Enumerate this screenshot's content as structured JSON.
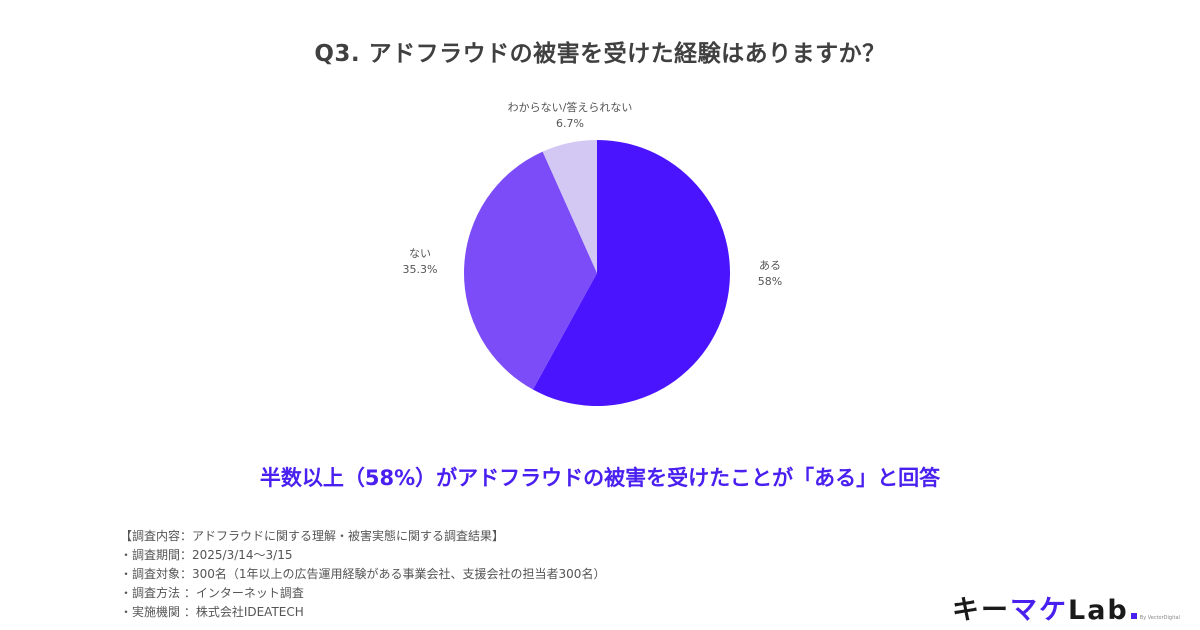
{
  "title": "Q3. アドフラウドの被害を受けた経験はありますか？",
  "headline": "半数以上（58%）がアドフラウドの被害を受けたことが「ある」と回答",
  "notes": [
    "【調査内容：アドフラウドに関する理解・被害実態に関する調査結果】",
    "・調査期間：2025/3/14〜3/15",
    "・調査対象：300名（1年以上の広告運用経験がある事業会社、支援会社の担当者300名）",
    "・調査方法 ：インターネット調査",
    "・実施機関 ：株式会社IDEATECH"
  ],
  "logo": {
    "part1": "キー",
    "part2": "マケ",
    "part3": "Lab",
    "by": "By VectorDigital"
  },
  "labels": {
    "aru": {
      "name": "ある",
      "value": "58%"
    },
    "nai": {
      "name": "ない",
      "value": "35.3%"
    },
    "wakaranai": {
      "name": "わからない/答えられない",
      "value": "6.7%"
    }
  },
  "chart_data": {
    "type": "pie",
    "title": "Q3. アドフラウドの被害を受けた経験はありますか？",
    "categories": [
      "ある",
      "ない",
      "わからない/答えられない"
    ],
    "values": [
      58,
      35.3,
      6.7
    ],
    "colors": [
      "#4a14ff",
      "#7b4cf8",
      "#d3c8f4"
    ],
    "start_angle": "12 o'clock, clockwise",
    "legend": "none (direct labels)"
  }
}
